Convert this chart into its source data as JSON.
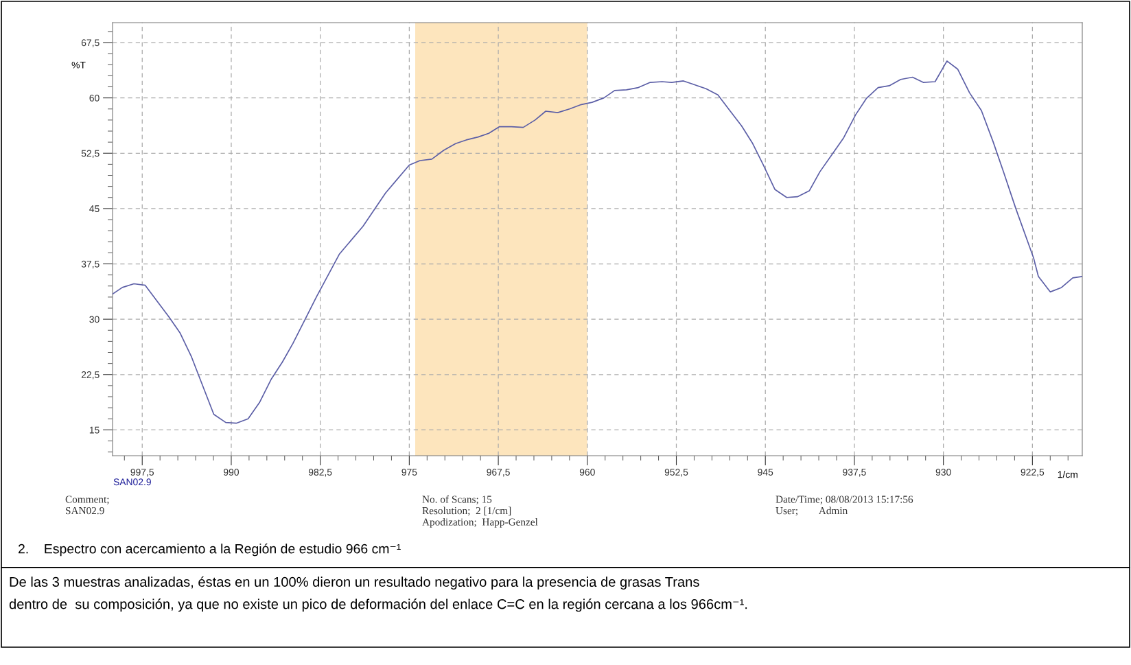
{
  "chart_data": {
    "type": "line",
    "xlabel": "1/cm",
    "ylabel": "%T",
    "xlim": [
      1000,
      918.3
    ],
    "ylim": [
      11.5,
      70.2
    ],
    "xticks": [
      {
        "value": 997.5,
        "label": "997,5"
      },
      990,
      {
        "value": 982.5,
        "label": "982,5"
      },
      975,
      {
        "value": 967.5,
        "label": "967,5"
      },
      960,
      {
        "value": 952.5,
        "label": "952,5"
      },
      945,
      {
        "value": 937.5,
        "label": "937,5"
      },
      930,
      {
        "value": 922.5,
        "label": "922,5"
      },
      {
        "value": 999,
        "label": null
      },
      {
        "value": 996,
        "label": null
      },
      {
        "value": 994.5,
        "label": null
      },
      {
        "value": 993,
        "label": null
      },
      {
        "value": 991.5,
        "label": null
      },
      {
        "value": 988.5,
        "label": null
      },
      {
        "value": 987,
        "label": null
      },
      {
        "value": 985.5,
        "label": null
      },
      {
        "value": 984,
        "label": null
      },
      {
        "value": 981,
        "label": null
      },
      {
        "value": 979.5,
        "label": null
      },
      {
        "value": 978,
        "label": null
      },
      {
        "value": 976.5,
        "label": null
      },
      {
        "value": 973.5,
        "label": null
      },
      {
        "value": 972,
        "label": null
      },
      {
        "value": 970.5,
        "label": null
      },
      {
        "value": 969,
        "label": null
      },
      {
        "value": 966,
        "label": null
      },
      {
        "value": 964.5,
        "label": null
      },
      {
        "value": 963,
        "label": null
      },
      {
        "value": 961.5,
        "label": null
      },
      {
        "value": 958.5,
        "label": null
      },
      {
        "value": 957,
        "label": null
      },
      {
        "value": 955.5,
        "label": null
      },
      {
        "value": 954,
        "label": null
      },
      {
        "value": 951,
        "label": null
      },
      {
        "value": 949.5,
        "label": null
      },
      {
        "value": 948,
        "label": null
      },
      {
        "value": 946.5,
        "label": null
      },
      {
        "value": 943.5,
        "label": null
      },
      {
        "value": 942,
        "label": null
      },
      {
        "value": 940.5,
        "label": null
      },
      {
        "value": 939,
        "label": null
      },
      {
        "value": 936,
        "label": null
      },
      {
        "value": 934.5,
        "label": null
      },
      {
        "value": 933,
        "label": null
      },
      {
        "value": 931.5,
        "label": null
      },
      {
        "value": 928.5,
        "label": null
      },
      {
        "value": 927,
        "label": null
      },
      {
        "value": 925.5,
        "label": null
      },
      {
        "value": 924,
        "label": null
      },
      {
        "value": 921,
        "label": null
      },
      {
        "value": 919.5,
        "label": null
      }
    ],
    "yticks": [
      15,
      {
        "value": 22.5,
        "label": "22,5"
      },
      30,
      {
        "value": 37.5,
        "label": "37,5"
      },
      45,
      {
        "value": 52.5,
        "label": "52,5"
      },
      60,
      {
        "value": 67.5,
        "label": "67,5"
      },
      {
        "value": 12,
        "label": null
      },
      {
        "value": 13.5,
        "label": null
      },
      {
        "value": 16.5,
        "label": null
      },
      {
        "value": 18,
        "label": null
      },
      {
        "value": 19.5,
        "label": null
      },
      {
        "value": 21,
        "label": null
      },
      {
        "value": 24,
        "label": null
      },
      {
        "value": 25.5,
        "label": null
      },
      {
        "value": 27,
        "label": null
      },
      {
        "value": 28.5,
        "label": null
      },
      {
        "value": 31.5,
        "label": null
      },
      {
        "value": 33,
        "label": null
      },
      {
        "value": 34.5,
        "label": null
      },
      {
        "value": 36,
        "label": null
      },
      {
        "value": 39,
        "label": null
      },
      {
        "value": 40.5,
        "label": null
      },
      {
        "value": 42,
        "label": null
      },
      {
        "value": 43.5,
        "label": null
      },
      {
        "value": 46.5,
        "label": null
      },
      {
        "value": 48,
        "label": null
      },
      {
        "value": 49.5,
        "label": null
      },
      {
        "value": 51,
        "label": null
      },
      {
        "value": 54,
        "label": null
      },
      {
        "value": 55.5,
        "label": null
      },
      {
        "value": 57,
        "label": null
      },
      {
        "value": 58.5,
        "label": null
      },
      {
        "value": 61.5,
        "label": null
      },
      {
        "value": 63,
        "label": null
      },
      {
        "value": 64.5,
        "label": null
      },
      {
        "value": 66,
        "label": null
      },
      {
        "value": 69,
        "label": null
      }
    ],
    "grid": true,
    "marker": "none",
    "line_style": "solid",
    "bands": [
      {
        "axis": "x",
        "from": 974.5,
        "to": 960,
        "color": "#fde5bd"
      }
    ],
    "series": [
      {
        "color": "#5b5ea6",
        "x": [
          1000,
          999.18,
          998.2,
          997.25,
          995.24,
          994.3,
          993.35,
          991.47,
          990.46,
          989.58,
          988.58,
          987.62,
          986.62,
          985.69,
          984.81,
          983.8,
          982.8,
          980.9,
          978.9,
          977.0,
          976.0,
          975.0,
          974.1,
          973.1,
          972.1,
          971.1,
          970.2,
          969.2,
          968.3,
          967.4,
          966.4,
          965.4,
          964.4,
          963.5,
          962.5,
          961.5,
          960.5,
          959.6,
          958.6,
          957.7,
          956.7,
          955.7,
          954.7,
          953.7,
          952.9,
          951.9,
          951.0,
          950.0,
          949.0,
          948.0,
          947.0,
          946.1,
          945.2,
          944.2,
          943.2,
          942.3,
          941.3,
          940.4,
          939.4,
          938.4,
          937.4,
          936.5,
          935.5,
          934.56,
          933.6,
          932.6,
          931.7,
          930.7,
          929.7,
          928.8,
          927.8,
          926.8,
          925.8,
          924.9,
          923.9,
          922.4,
          922.0,
          921.0,
          920.05,
          919.1,
          918.3
        ],
        "values": [
          33.4,
          34.3,
          34.8,
          34.6,
          30.3,
          28.1,
          24.9,
          17.1,
          16.0,
          15.9,
          16.5,
          18.7,
          21.9,
          24.2,
          26.7,
          29.9,
          33.1,
          38.8,
          42.6,
          47.1,
          49.0,
          50.9,
          51.5,
          51.7,
          52.9,
          53.8,
          54.3,
          54.7,
          55.2,
          56.1,
          56.1,
          56.0,
          57.0,
          58.2,
          58.0,
          58.5,
          59.1,
          59.4,
          60.0,
          61.0,
          61.1,
          61.4,
          62.1,
          62.2,
          62.1,
          62.3,
          61.8,
          61.25,
          60.4,
          58.3,
          56.2,
          53.9,
          51.0,
          47.6,
          46.5,
          46.6,
          47.4,
          50.0,
          52.3,
          54.6,
          57.7,
          59.9,
          61.4,
          61.65,
          62.5,
          62.8,
          62.1,
          62.2,
          65.0,
          63.9,
          60.7,
          58.3,
          54.0,
          49.8,
          45.0,
          38.3,
          35.8,
          33.7,
          34.3,
          35.6,
          35.8
        ]
      }
    ],
    "annotations": [
      "SAN02.9",
      "Comment;\nSAN02.9",
      "No. of Scans; 15\nResolution;  2 [1/cm]\nApodization;  Happ-Genzel",
      "Date/Time; 08/08/2013 15:17:56\nUser;        Admin",
      "2.    Espectro con acercamiento a la Región de estudio 966 cm⁻¹",
      "De las 3 muestras analizadas, éstas en un 100% dieron un resultado negativo para la presencia de grasas Trans\ndentro de  su composición, ya que no existe un pico de deformación del enlace C=C en la región cercana a los 966cm⁻¹."
    ]
  }
}
